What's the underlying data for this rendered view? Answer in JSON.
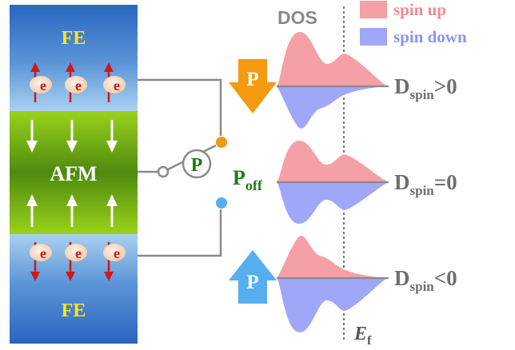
{
  "stack": {
    "top_layer": "FE",
    "middle_layer": "AFM",
    "bottom_layer": "FE",
    "electron_symbol": "e"
  },
  "switch": {
    "symbol": "P",
    "off_main": "P",
    "off_sub": "off"
  },
  "polarization": {
    "down_arrow_label": "P",
    "up_arrow_label": "P"
  },
  "dos": {
    "title": "DOS",
    "legend": [
      {
        "name": "spin up",
        "color": "#f4a0a6"
      },
      {
        "name": "spin down",
        "color": "#a0a6f8"
      }
    ],
    "fermi_main": "E",
    "fermi_sub": "f",
    "rows": [
      {
        "d_main": "D",
        "d_sub": "spin",
        "relation": ">0"
      },
      {
        "d_main": "D",
        "d_sub": "spin",
        "relation": "=0"
      },
      {
        "d_main": "D",
        "d_sub": "spin",
        "relation": "<0"
      }
    ]
  },
  "colors": {
    "fe_blue": "#2f6fc4",
    "afm_green": "#5f9a12",
    "orange": "#f39a0e",
    "light_blue": "#55aef0",
    "switch_green": "#1f7a1f",
    "wire_gray": "#8a8a8a"
  }
}
